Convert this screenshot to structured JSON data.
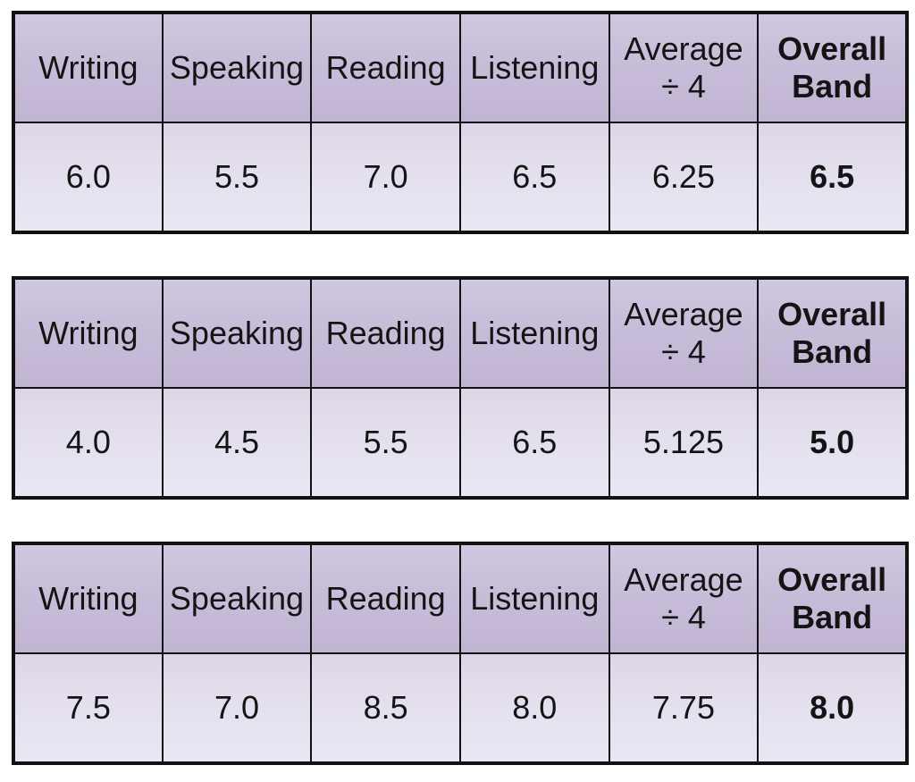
{
  "colors": {
    "page_bg": "#ffffff",
    "header_bg": "#c8bdd9",
    "header_bg_top": "#d0c7e0",
    "header_bg_bottom": "#c0b4d3",
    "row_bg": "#e5e0ee",
    "row_bg_top": "#dcd6e6",
    "row_bg_bottom": "#eae6f3",
    "border": "#121212",
    "text": "#141414"
  },
  "tables": [
    {
      "headers": [
        "Writing",
        "Speaking",
        "Reading",
        "Listening",
        "Average\n÷ 4",
        "Overall\nBand"
      ],
      "values": [
        "6.0",
        "5.5",
        "7.0",
        "6.5",
        "6.25",
        "6.5"
      ]
    },
    {
      "headers": [
        "Writing",
        "Speaking",
        "Reading",
        "Listening",
        "Average\n÷ 4",
        "Overall\nBand"
      ],
      "values": [
        "4.0",
        "4.5",
        "5.5",
        "6.5",
        "5.125",
        "5.0"
      ]
    },
    {
      "headers": [
        "Writing",
        "Speaking",
        "Reading",
        "Listening",
        "Average\n÷ 4",
        "Overall\nBand"
      ],
      "values": [
        "7.5",
        "7.0",
        "8.5",
        "8.0",
        "7.75",
        "8.0"
      ]
    }
  ]
}
